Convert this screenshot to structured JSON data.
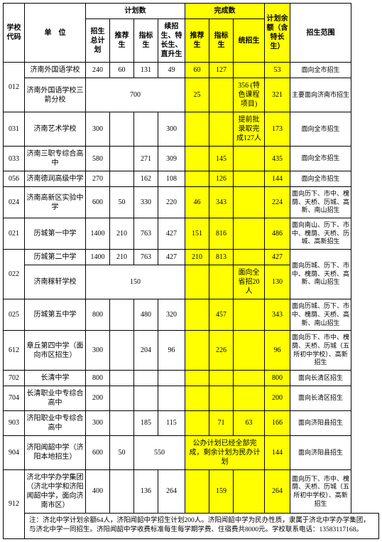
{
  "headers": {
    "code": "学校代码",
    "unit": "单　位",
    "plan_group": "计划数",
    "done_group": "完成数",
    "remain": "计划余额（含特长生）",
    "scope": "招生范围",
    "plan_total": "招生总计划",
    "plan_rec": "推荐生",
    "plan_idx": "指标生",
    "plan_other": "续招生、特长生、直升生",
    "done_rec": "推荐生",
    "done_idx": "指标生",
    "done_reg": "统招生"
  },
  "rows": [
    {
      "code": "012",
      "codeRowspan": 2,
      "unit": "济南外国语学校",
      "p_total": "240",
      "p_rec": "60",
      "p_idx": "131",
      "p_other": "49",
      "d_rec": "60",
      "d_idx": "127",
      "d_reg": "",
      "remain": "53",
      "scope": "面向全市招生"
    },
    {
      "unit": "济南外国语学校三箭分校",
      "p_total": "",
      "p_total_colspan": 4,
      "p_merged": "700",
      "p_rec": "",
      "p_idx": "",
      "p_other": "",
      "d_rec": "25",
      "d_idx": "",
      "d_reg": "356 (特色课程项目)",
      "remain": "321",
      "scope": "主要面向济南市招生"
    },
    {
      "code": "031",
      "unit": "济南艺术学校",
      "p_total": "300",
      "p_rec": "",
      "p_idx": "",
      "p_other": "300",
      "d_rec": "",
      "d_idx": "",
      "d_reg": "提前批录取完成127人",
      "remain": "173",
      "scope": "面向全市招生"
    },
    {
      "code": "033",
      "unit": "济南三职专综合高中",
      "p_total": "580",
      "p_rec": "",
      "p_idx": "271",
      "p_other": "309",
      "d_rec": "",
      "d_idx": "145",
      "d_reg": "",
      "remain": "435",
      "scope": "面向全市招生"
    },
    {
      "code": "056",
      "unit": "济南德润高级中学",
      "p_total": "270",
      "p_rec": "",
      "p_idx": "162",
      "p_other": "108",
      "d_rec": "",
      "d_idx": "126",
      "d_reg": "",
      "remain": "144",
      "scope": "面向全市招生"
    },
    {
      "code": "024",
      "unit": "济南高新区实验中学",
      "p_total": "600",
      "p_rec": "50",
      "p_idx": "330",
      "p_other": "220",
      "d_rec": "46",
      "d_idx": "343",
      "d_reg": "",
      "remain": "224",
      "scope": "面向历下、市中、槐荫、天桥、历城、高新、南山招生"
    },
    {
      "code": "021",
      "unit": "历城第一中学",
      "p_total": "1400",
      "p_rec": "210",
      "p_idx": "763",
      "p_other": "427",
      "d_rec": "151",
      "d_idx": "816",
      "d_reg": "",
      "remain": "486",
      "scope": "面向南山、历下、市中、槐荫、天桥、历城、高新招生"
    },
    {
      "code": "022",
      "codeRowspan": 2,
      "unit": "历城第二中学",
      "p_total": "1400",
      "p_rec": "210",
      "p_idx": "763",
      "p_other": "427",
      "d_rec": "210",
      "d_idx": "813",
      "d_reg": "",
      "remain": "427",
      "scope": "面向历城、历下、市中、槐荫、天桥、高新、南山招生",
      "scopeRowspan": 2
    },
    {
      "unit": "济南稼轩学校",
      "p_total": "",
      "p_total_colspan": 4,
      "p_merged": "150",
      "d_rec": "",
      "d_idx": "",
      "d_reg": "面向全省招20人",
      "remain": "130"
    },
    {
      "code": "025",
      "unit": "历城第五中学",
      "p_total": "800",
      "p_rec": "",
      "p_idx": "480",
      "p_other": "320",
      "d_rec": "",
      "d_idx": "457",
      "d_reg": "",
      "remain": "343",
      "scope": "面向历城、历下、市中、槐荫、天桥、高新、南山招生"
    },
    {
      "code": "612",
      "unit": "章丘第四中学（面向市区招生）",
      "p_total": "300",
      "p_rec": "",
      "p_idx": "204",
      "p_other": "96",
      "d_rec": "",
      "d_idx": "226",
      "d_reg": "",
      "remain": "96",
      "scope": "面向历下、市中、槐荫、天桥、历城（五所初中学校）、高新招生"
    },
    {
      "code": "702",
      "unit": "长清中学",
      "p_total": "800",
      "p_rec": "",
      "p_idx": "",
      "p_other": "",
      "d_rec": "",
      "d_idx": "",
      "d_reg": "",
      "remain": "800",
      "scope": "面向长清区招生"
    },
    {
      "code": "704",
      "unit": "长清职业中专综合高中",
      "p_total": "200",
      "p_rec": "",
      "p_idx": "",
      "p_other": "",
      "d_rec": "",
      "d_idx": "",
      "d_reg": "",
      "remain": "200",
      "scope": "面向长清区招生"
    },
    {
      "code": "903",
      "unit": "济阳职业中专综合高中",
      "p_total": "300",
      "p_rec": "",
      "p_idx": "185",
      "p_other": "115",
      "d_rec": "",
      "d_idx": "71",
      "d_reg": "63",
      "remain": "166",
      "scope": "面向济阳县招生"
    },
    {
      "code": "904",
      "unit": "济阳闻韶中学（济阳本地招生）",
      "p_total": "600",
      "p_rec": "50",
      "p_idx": "",
      "p_idx_colspan": 2,
      "p_idx_merged": "550",
      "d_rec": "",
      "d_rec_colspan": 3,
      "d_merged": "公办计划已经全部完成，剩余计划为民办计划",
      "remain": "144",
      "scope": "面向济阳县招生"
    },
    {
      "code": "912",
      "codeRowspan": 2,
      "unit": "济北中学办学集团（济北中学和济阳闻韶中学，面向济南市区）",
      "p_total": "400",
      "p_rec": "",
      "p_idx": "136",
      "p_other": "264",
      "d_rec": "",
      "d_idx": "159",
      "d_reg": "",
      "remain": "264",
      "scope": "面向历下、市中、槐荫、天桥、历城（五所初中学校）、高新招生"
    }
  ],
  "footnote": "注：济北中学计划余额64人，济阳闻韶中学招生计划200人。济阳闻韶中学为民办性质，隶属于济北中学办学集团，与济北中学一同招生。济阳闻韶中学收费标准每生每学期学费、住宿费共8000元。学校联系电话：13583117168。"
}
